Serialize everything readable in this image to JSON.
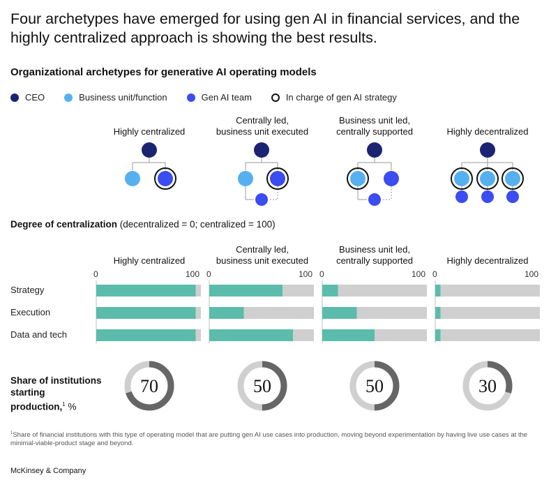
{
  "title": "Four archetypes have emerged for using gen AI in financial services, and the highly centralized approach is showing the best results.",
  "subtitle": "Organizational archetypes for generative AI operating models",
  "legend": [
    {
      "label": "CEO",
      "color": "#1b2470",
      "style": "filled"
    },
    {
      "label": "Business unit/function",
      "color": "#56b0f0",
      "style": "filled"
    },
    {
      "label": "Gen AI team",
      "color": "#3b4cf0",
      "style": "filled"
    },
    {
      "label": "In charge of gen AI strategy",
      "color": "#111111",
      "style": "ring"
    }
  ],
  "archetypes": [
    {
      "line1": "",
      "line2": "Highly centralized"
    },
    {
      "line1": "Centrally led,",
      "line2": "business unit executed"
    },
    {
      "line1": "Business unit led,",
      "line2": "centrally supported"
    },
    {
      "line1": "",
      "line2": "Highly decentralized"
    }
  ],
  "degree": {
    "label_bold": "Degree of centralization",
    "label_rest": " (decentralized = 0; centralized = 100)",
    "axis_min": "0",
    "axis_max": "100"
  },
  "colors": {
    "ceo": "#1b2470",
    "bu": "#56b0f0",
    "genai": "#3b4cf0",
    "bar_fill": "#5bbcab",
    "bar_track": "#cfcfcf",
    "donut_fill": "#666666",
    "donut_track": "#cfcfcf"
  },
  "chart_data": {
    "type": "bar",
    "orientation": "horizontal",
    "title": "Degree of centralization",
    "xlim": [
      0,
      100
    ],
    "categories": [
      "Strategy",
      "Execution",
      "Data and tech"
    ],
    "series": [
      {
        "name": "Highly centralized",
        "values": [
          95,
          95,
          95
        ]
      },
      {
        "name": "Centrally led, business unit executed",
        "values": [
          70,
          33,
          80
        ]
      },
      {
        "name": "Business unit led, centrally supported",
        "values": [
          15,
          33,
          50
        ]
      },
      {
        "name": "Highly decentralized",
        "values": [
          5,
          5,
          5
        ]
      }
    ]
  },
  "share": {
    "label_line1": "Share of institutions",
    "label_line2": "starting",
    "label_line3": "production,",
    "footnote_mark": "1",
    "unit": " %",
    "values": [
      "70",
      "50",
      "50",
      "30"
    ]
  },
  "footnote": {
    "mark": "1",
    "text": "Share of financial institutions with this type of operating model that are putting gen AI use cases into production, moving beyond experimentation by having live use cases at the minimal-viable-product stage and beyond."
  },
  "brand": "McKinsey & Company"
}
